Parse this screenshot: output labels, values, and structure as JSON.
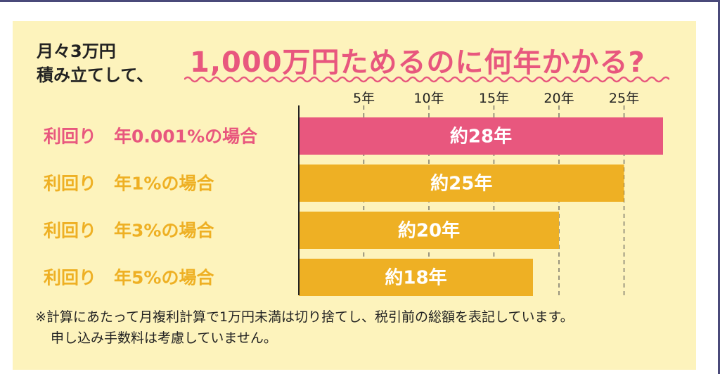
{
  "lead": {
    "line1": "月々3万円",
    "line2": "積み立てして、"
  },
  "headline": "1,000万円ためるのに何年かかる?",
  "note": {
    "line1": "※計算にあたって月複利計算で1万円未満は切り捨てし、税引前の総額を表記しています。",
    "line2": "申し込み手数料は考慮していません。"
  },
  "colors": {
    "panel": "#fdf3bc",
    "pink": "#e8577e",
    "orange": "#eeb024"
  },
  "chart_data": {
    "type": "bar",
    "orientation": "horizontal",
    "categories": [
      "利回り　年0.001%の場合",
      "利回り　年1%の場合",
      "利回り　年3%の場合",
      "利回り　年5%の場合"
    ],
    "values": [
      28,
      25,
      20,
      18
    ],
    "value_labels": [
      "約28年",
      "約25年",
      "約20年",
      "約18年"
    ],
    "bar_colors": [
      "#e8577e",
      "#eeb024",
      "#eeb024",
      "#eeb024"
    ],
    "label_colors": [
      "#e8577e",
      "#eeb024",
      "#eeb024",
      "#eeb024"
    ],
    "x_ticks": [
      5,
      10,
      15,
      20,
      25
    ],
    "x_tick_labels": [
      "5年",
      "10年",
      "15年",
      "20年",
      "25年"
    ],
    "xlim": [
      0,
      28
    ],
    "grid": "vertical dashed",
    "axis_position": "top"
  }
}
